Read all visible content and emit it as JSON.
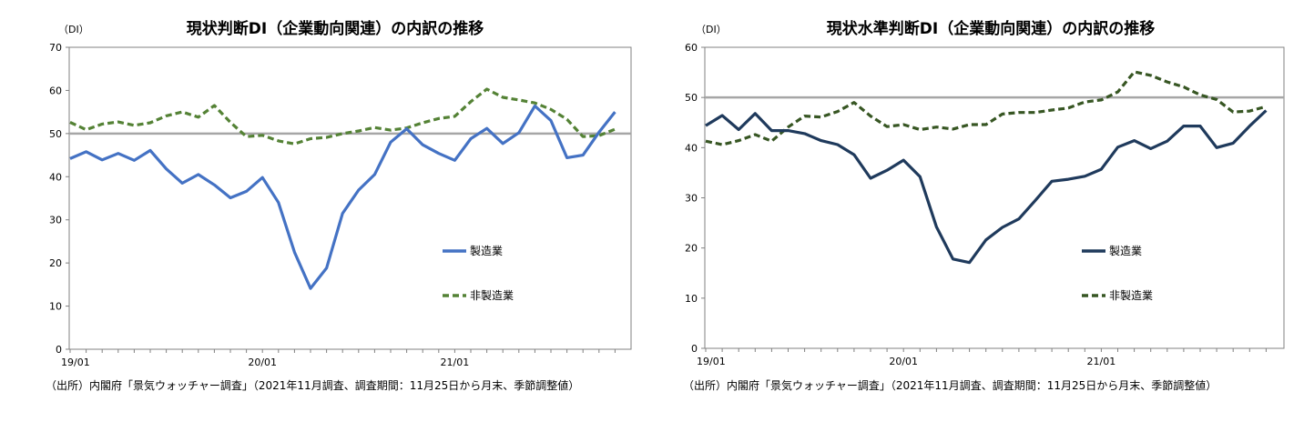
{
  "chart_data": [
    {
      "type": "line",
      "title": "現状判断DI（企業動向関連）の内訳の推移",
      "yunit": "（DI）",
      "ylim": [
        0,
        70
      ],
      "yticks": [
        "0",
        "10",
        "20",
        "30",
        "40",
        "50",
        "60",
        "70"
      ],
      "xticks": [
        {
          "index": 0,
          "label": "19/01"
        },
        {
          "index": 12,
          "label": "20/01"
        },
        {
          "index": 24,
          "label": "21/01"
        }
      ],
      "reference_line": 50,
      "grid": false,
      "legend_placement": "center-right",
      "source": "（出所）内閣府「景気ウォッチャー調査」（2021年11月調査、調査期間：11月25日から月末、季節調整値）",
      "series": [
        {
          "name": "製造業",
          "style": "solid",
          "color": "#4472c4",
          "values": [
            44.2,
            45.8,
            43.9,
            45.4,
            43.8,
            46.1,
            41.8,
            38.5,
            40.5,
            38.1,
            35.1,
            36.6,
            39.8,
            34.0,
            22.5,
            14.1,
            18.8,
            31.5,
            36.9,
            40.5,
            48.0,
            51.1,
            47.4,
            45.4,
            43.8,
            48.8,
            51.2,
            47.7,
            50.2,
            56.4,
            53.0,
            44.4,
            45.0,
            50.3,
            55.0
          ]
        },
        {
          "name": "非製造業",
          "style": "dashed",
          "color": "#548235",
          "values": [
            52.6,
            50.9,
            52.2,
            52.7,
            51.9,
            52.5,
            54.1,
            55.0,
            53.8,
            56.5,
            52.6,
            49.3,
            49.6,
            48.3,
            47.6,
            48.8,
            49.1,
            50.0,
            50.6,
            51.4,
            50.8,
            51.3,
            52.5,
            53.5,
            54.0,
            57.4,
            60.3,
            58.4,
            57.8,
            57.1,
            55.6,
            53.3,
            49.3,
            49.5,
            51.0
          ]
        }
      ]
    },
    {
      "type": "line",
      "title": "現状水準判断DI（企業動向関連）の内訳の推移",
      "yunit": "（DI）",
      "ylim": [
        0,
        60
      ],
      "yticks": [
        "0",
        "10",
        "20",
        "30",
        "40",
        "50",
        "60"
      ],
      "xticks": [
        {
          "index": 0,
          "label": "19/01"
        },
        {
          "index": 12,
          "label": "20/01"
        },
        {
          "index": 24,
          "label": "21/01"
        }
      ],
      "reference_line": 50,
      "grid": false,
      "legend_placement": "center-right",
      "source": "（出所）内閣府「景気ウォッチャー調査」（2021年11月調査、調査期間：11月25日から月末、季節調整値）",
      "series": [
        {
          "name": "製造業",
          "style": "solid",
          "color": "#1f3a5c",
          "values": [
            44.4,
            46.4,
            43.6,
            46.8,
            43.4,
            43.4,
            42.8,
            41.4,
            40.6,
            38.6,
            33.9,
            35.5,
            37.5,
            34.2,
            24.2,
            17.8,
            17.1,
            21.6,
            24.1,
            25.8,
            29.5,
            33.3,
            33.7,
            34.3,
            35.7,
            40.1,
            41.4,
            39.8,
            41.3,
            44.3,
            44.3,
            40.0,
            40.9,
            44.3,
            47.4
          ]
        },
        {
          "name": "非製造業",
          "style": "dashed",
          "color": "#375623",
          "values": [
            41.3,
            40.6,
            41.4,
            42.6,
            41.3,
            44.1,
            46.3,
            46.1,
            47.2,
            49.0,
            46.3,
            44.2,
            44.6,
            43.6,
            44.1,
            43.7,
            44.6,
            44.6,
            46.7,
            47.0,
            47.0,
            47.5,
            47.9,
            49.1,
            49.5,
            51.1,
            55.1,
            54.4,
            53.1,
            52.1,
            50.5,
            49.6,
            47.1,
            47.3,
            48.2
          ]
        }
      ]
    }
  ]
}
